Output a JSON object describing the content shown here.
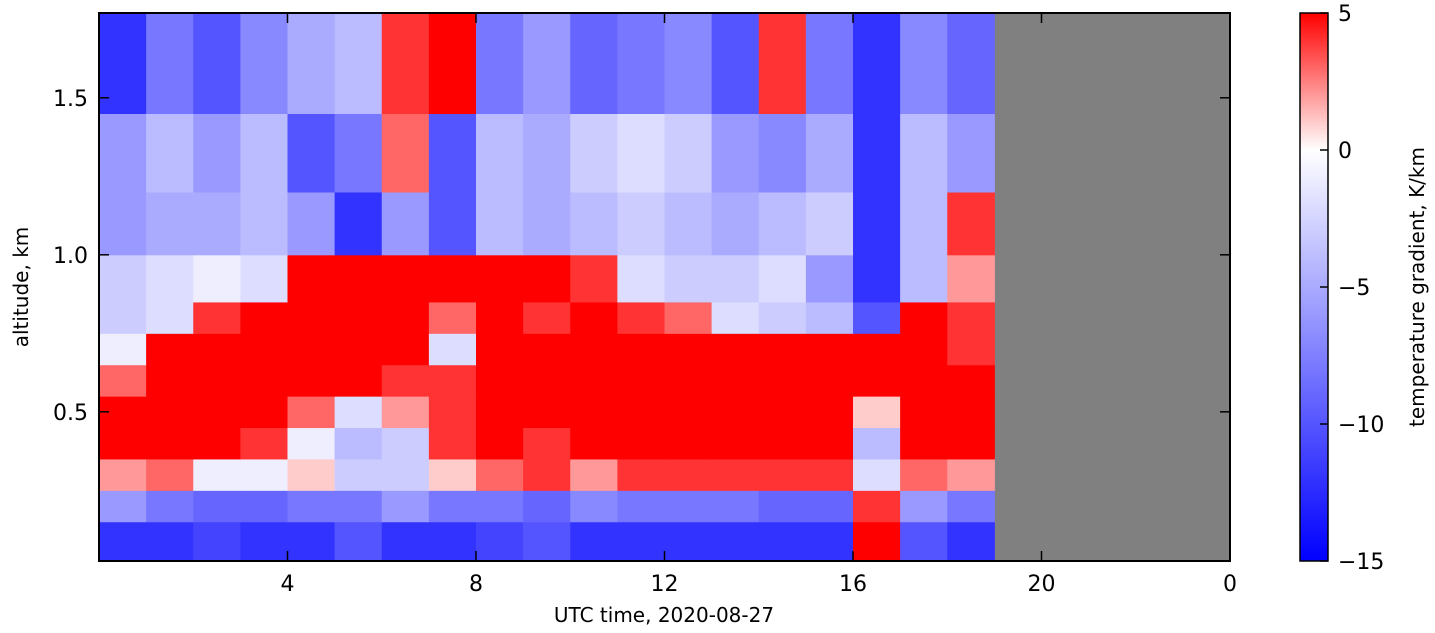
{
  "chart_data": {
    "type": "heatmap",
    "xlabel": "UTC time,  2020-08-27",
    "ylabel": "altitude, km",
    "colorbar_label": "temperature gradient, K/km",
    "colormap": "bwr",
    "clim": [
      -15,
      5
    ],
    "vcenter": 0,
    "xlim": [
      0,
      24
    ],
    "ylim": [
      0.025,
      1.77
    ],
    "xticks": [
      4,
      8,
      12,
      16,
      20,
      {
        "value": 24,
        "label": "0"
      }
    ],
    "yticks": [
      {
        "value": 0.5,
        "label": "0.5"
      },
      {
        "value": 1.0,
        "label": "1.0"
      },
      {
        "value": 1.5,
        "label": "1.5"
      }
    ],
    "cticks": [
      5,
      0,
      {
        "value": -5,
        "label": "−5"
      },
      {
        "value": -10,
        "label": "−10"
      },
      {
        "value": -15,
        "label": "−15"
      }
    ],
    "missing_color": "#808080",
    "x_edges": [
      0,
      1,
      2,
      3,
      4,
      5,
      6,
      7,
      8,
      9,
      10,
      11,
      12,
      13,
      14,
      15,
      16,
      17,
      18,
      19
    ],
    "y_edges": [
      0.025,
      0.15,
      0.25,
      0.35,
      0.45,
      0.55,
      0.65,
      0.75,
      0.85,
      1.0,
      1.2,
      1.45,
      1.77
    ],
    "z": [
      [
        -12,
        -12,
        -11,
        -12,
        -12,
        -10,
        -12,
        -12,
        -11,
        -10,
        -12,
        -12,
        -12,
        -12,
        -12,
        -12,
        5,
        -10,
        -12
      ],
      [
        -6,
        -8,
        -9,
        -9,
        -8,
        -8,
        -6,
        -8,
        -8,
        -9,
        -7,
        -8,
        -8,
        -8,
        -9,
        -9,
        4,
        -6,
        -8
      ],
      [
        2,
        3,
        -1,
        -1,
        1,
        -3,
        -3,
        1,
        3,
        4,
        2,
        4,
        4,
        4,
        4,
        4,
        -2,
        3,
        2
      ],
      [
        5,
        5,
        5,
        4,
        -1,
        -4,
        -3,
        4,
        5,
        4,
        5,
        5,
        5,
        5,
        5,
        5,
        -4,
        5,
        5
      ],
      [
        5,
        5,
        5,
        5,
        3,
        -2,
        2,
        4,
        5,
        5,
        5,
        5,
        5,
        5,
        5,
        5,
        1,
        5,
        5
      ],
      [
        3,
        5,
        5,
        5,
        5,
        5,
        4,
        4,
        5,
        5,
        5,
        5,
        5,
        5,
        5,
        5,
        5,
        5,
        5
      ],
      [
        -1,
        5,
        5,
        5,
        5,
        5,
        5,
        -2,
        5,
        5,
        5,
        5,
        5,
        5,
        5,
        5,
        5,
        5,
        4
      ],
      [
        -3,
        -2,
        4,
        5,
        5,
        5,
        5,
        3,
        5,
        4,
        5,
        4,
        3,
        -2,
        -3,
        -4,
        -10,
        5,
        4
      ],
      [
        -3,
        -2,
        -1,
        -2,
        5,
        5,
        5,
        5,
        5,
        5,
        4,
        -2,
        -3,
        -3,
        -2,
        -6,
        -12,
        -4,
        2
      ],
      [
        -6,
        -5,
        -5,
        -4,
        -6,
        -12,
        -6,
        -10,
        -4,
        -5,
        -4,
        -3,
        -4,
        -5,
        -4,
        -3,
        -12,
        -4,
        4
      ],
      [
        -6,
        -4,
        -6,
        -4,
        -10,
        -8,
        3,
        -10,
        -4,
        -5,
        -3,
        -2,
        -3,
        -6,
        -7,
        -5,
        -12,
        -4,
        -6
      ],
      [
        -12,
        -8,
        -10,
        -7,
        -5,
        -4,
        4,
        5,
        -8,
        -6,
        -9,
        -8,
        -7,
        -10,
        4,
        -8,
        -12,
        -7,
        -9
      ]
    ]
  }
}
